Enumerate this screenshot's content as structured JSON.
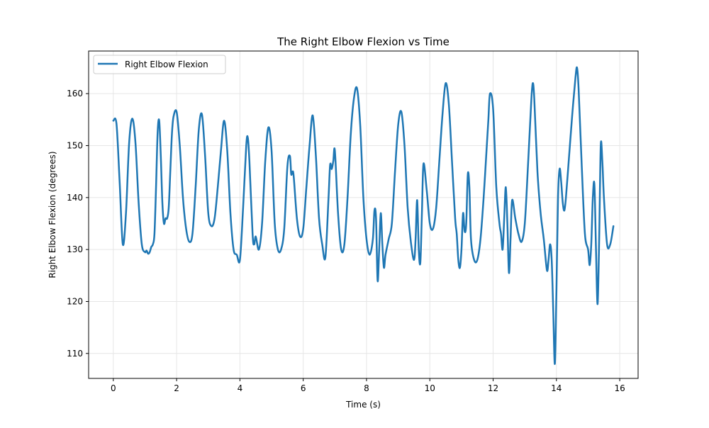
{
  "chart_data": {
    "type": "line",
    "title": "The Right Elbow Flexion vs Time",
    "xlabel": "Time (s)",
    "ylabel": "Right Elbow Flexion (degrees)",
    "xlim": [
      -0.78,
      16.58
    ],
    "ylim": [
      105.2,
      168.2
    ],
    "xticks": [
      0,
      2,
      4,
      6,
      8,
      10,
      12,
      14,
      16
    ],
    "yticks": [
      110,
      120,
      130,
      140,
      150,
      160
    ],
    "grid": true,
    "legend_position": "top-left",
    "series": [
      {
        "name": "Right Elbow Flexion",
        "color": "#1f77b4",
        "x": [
          0,
          0.1,
          0.2,
          0.3,
          0.4,
          0.5,
          0.6,
          0.7,
          0.8,
          0.9,
          1.0,
          1.05,
          1.1,
          1.15,
          1.2,
          1.25,
          1.3,
          1.35,
          1.4,
          1.45,
          1.5,
          1.55,
          1.6,
          1.65,
          1.7,
          1.75,
          1.8,
          1.85,
          1.9,
          2.0,
          2.1,
          2.2,
          2.3,
          2.4,
          2.5,
          2.6,
          2.7,
          2.8,
          2.9,
          3.0,
          3.1,
          3.2,
          3.3,
          3.4,
          3.5,
          3.6,
          3.7,
          3.8,
          3.9,
          4.0,
          4.1,
          4.2,
          4.25,
          4.3,
          4.4,
          4.45,
          4.5,
          4.6,
          4.7,
          4.8,
          4.9,
          5.0,
          5.1,
          5.2,
          5.3,
          5.4,
          5.5,
          5.58,
          5.62,
          5.66,
          5.7,
          5.8,
          5.9,
          6.0,
          6.1,
          6.2,
          6.3,
          6.4,
          6.5,
          6.6,
          6.7,
          6.8,
          6.85,
          6.9,
          6.95,
          7.0,
          7.1,
          7.2,
          7.3,
          7.4,
          7.5,
          7.6,
          7.7,
          7.8,
          7.9,
          8.0,
          8.1,
          8.2,
          8.25,
          8.3,
          8.35,
          8.4,
          8.45,
          8.5,
          8.55,
          8.6,
          8.7,
          8.8,
          8.9,
          9.0,
          9.1,
          9.2,
          9.3,
          9.4,
          9.5,
          9.55,
          9.6,
          9.65,
          9.7,
          9.75,
          9.8,
          9.9,
          10.0,
          10.1,
          10.2,
          10.3,
          10.4,
          10.5,
          10.6,
          10.7,
          10.8,
          10.85,
          10.9,
          10.95,
          11.0,
          11.05,
          11.1,
          11.15,
          11.2,
          11.25,
          11.3,
          11.4,
          11.5,
          11.6,
          11.7,
          11.8,
          11.85,
          11.9,
          12.0,
          12.1,
          12.2,
          12.25,
          12.3,
          12.35,
          12.4,
          12.45,
          12.5,
          12.55,
          12.6,
          12.7,
          12.8,
          12.9,
          13.0,
          13.1,
          13.2,
          13.25,
          13.3,
          13.4,
          13.5,
          13.6,
          13.7,
          13.75,
          13.8,
          13.85,
          13.9,
          13.95,
          14.0,
          14.05,
          14.1,
          14.15,
          14.2,
          14.25,
          14.3,
          14.4,
          14.5,
          14.6,
          14.65,
          14.7,
          14.8,
          14.9,
          15.0,
          15.05,
          15.1,
          15.15,
          15.2,
          15.25,
          15.3,
          15.35,
          15.4,
          15.45,
          15.5,
          15.6,
          15.7,
          15.8
        ],
        "y": [
          154.8,
          154.2,
          143.0,
          131.0,
          137.0,
          150.5,
          155.2,
          150.5,
          139.0,
          131.0,
          129.5,
          129.8,
          129.2,
          129.5,
          130.5,
          131.0,
          133.0,
          142.0,
          152.5,
          154.8,
          148.0,
          139.0,
          135.0,
          136.0,
          136.0,
          138.0,
          145.0,
          152.0,
          155.5,
          156.5,
          150.0,
          140.0,
          134.0,
          131.5,
          133.0,
          142.0,
          153.0,
          156.0,
          148.0,
          137.0,
          134.5,
          136.0,
          142.0,
          149.0,
          154.8,
          149.0,
          137.0,
          130.0,
          129.0,
          128.0,
          138.0,
          150.0,
          151.5,
          147.0,
          133.0,
          131.0,
          132.5,
          130.0,
          135.0,
          147.0,
          153.5,
          149.0,
          135.0,
          130.0,
          130.0,
          134.0,
          146.0,
          148.0,
          144.5,
          145.0,
          144.0,
          136.0,
          132.5,
          134.0,
          142.0,
          150.0,
          155.8,
          148.0,
          136.0,
          131.0,
          128.5,
          140.0,
          146.3,
          145.5,
          147.0,
          149.0,
          137.0,
          130.0,
          131.0,
          140.0,
          152.0,
          159.0,
          161.0,
          154.0,
          140.0,
          132.0,
          129.0,
          132.0,
          137.5,
          136.0,
          124.0,
          130.0,
          137.0,
          131.0,
          126.5,
          129.0,
          132.0,
          135.0,
          145.0,
          154.0,
          156.5,
          150.0,
          138.0,
          131.5,
          128.0,
          132.0,
          139.5,
          130.0,
          127.5,
          137.0,
          146.5,
          141.5,
          135.0,
          134.0,
          138.0,
          147.0,
          156.0,
          162.0,
          158.0,
          147.0,
          136.0,
          133.0,
          128.0,
          126.5,
          130.0,
          137.0,
          133.5,
          135.0,
          144.5,
          142.0,
          132.0,
          128.0,
          128.0,
          132.0,
          140.0,
          150.0,
          155.0,
          160.0,
          157.0,
          142.0,
          135.0,
          133.0,
          130.0,
          136.0,
          142.0,
          135.0,
          125.5,
          132.0,
          139.5,
          136.0,
          133.0,
          131.5,
          135.0,
          146.0,
          158.0,
          162.0,
          159.0,
          145.0,
          137.0,
          132.0,
          126.0,
          128.0,
          131.0,
          128.0,
          118.0,
          108.0,
          122.0,
          140.0,
          145.5,
          143.0,
          139.0,
          137.5,
          140.0,
          148.0,
          156.0,
          163.0,
          165.0,
          161.0,
          146.0,
          133.0,
          130.0,
          127.0,
          131.0,
          140.0,
          142.5,
          130.0,
          119.5,
          132.0,
          150.0,
          147.0,
          140.0,
          131.0,
          131.0,
          134.5
        ]
      }
    ]
  }
}
